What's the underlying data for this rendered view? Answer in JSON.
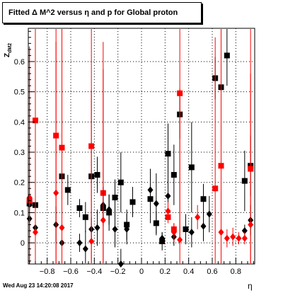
{
  "chart_data": {
    "type": "scatter",
    "title": "Fitted Δ M^2 versus η and p for Global proton",
    "xlabel": "η",
    "ylabel_main": "Z",
    "ylabel_sub": "dM2",
    "xlim": [
      -0.96,
      0.96
    ],
    "ylim": [
      -0.07,
      0.71
    ],
    "x_ticks": [
      -0.8,
      -0.6,
      -0.4,
      -0.2,
      0,
      0.2,
      0.4,
      0.6,
      0.8
    ],
    "x_tick_labels": [
      "−0.8",
      "−0.6",
      "−0.4",
      "−0.2",
      "0",
      "0.2",
      "0.4",
      "0.6",
      "0.8"
    ],
    "y_ticks": [
      0,
      0.1,
      0.2,
      0.3,
      0.4,
      0.5,
      0.6
    ],
    "y_tick_labels": [
      "0",
      "0.1",
      "0.2",
      "0.3",
      "0.4",
      "0.5",
      "0.6"
    ],
    "footer": "Wed Aug 23 14:20:08 2017",
    "series": [
      {
        "marker": "square",
        "color": "#000000",
        "points": [
          {
            "x": -0.95,
            "y": 0.13,
            "err": 0.02
          },
          {
            "x": -0.9,
            "y": 0.125,
            "err": 0.03
          },
          {
            "x": -0.675,
            "y": 0.22,
            "err": 0.08
          },
          {
            "x": -0.625,
            "y": 0.175,
            "err": 0.05
          },
          {
            "x": -0.525,
            "y": 0.115,
            "err": 0.03
          },
          {
            "x": -0.475,
            "y": 0.085,
            "err": 0.05
          },
          {
            "x": -0.425,
            "y": 0.22,
            "err": 0.02
          },
          {
            "x": -0.375,
            "y": 0.225,
            "err": 0.06
          },
          {
            "x": -0.325,
            "y": 0.115,
            "err": 0.06
          },
          {
            "x": -0.275,
            "y": 0.1,
            "err": 0.06
          },
          {
            "x": -0.225,
            "y": 0.15,
            "err": 0.06
          },
          {
            "x": -0.175,
            "y": 0.2,
            "err": 0.1
          },
          {
            "x": -0.125,
            "y": 0.06,
            "err": 0.05
          },
          {
            "x": -0.075,
            "y": 0.135,
            "err": 0.05
          },
          {
            "x": 0.075,
            "y": 0.145,
            "err": 0.08
          },
          {
            "x": 0.125,
            "y": 0.065,
            "err": 0.04
          },
          {
            "x": 0.175,
            "y": 0.005,
            "err": 0.03
          },
          {
            "x": 0.225,
            "y": 0.295,
            "err": 0.1
          },
          {
            "x": 0.275,
            "y": 0.225,
            "err": 0.1
          },
          {
            "x": 0.325,
            "y": 0.425,
            "err": 0.08
          },
          {
            "x": 0.375,
            "y": 0.045,
            "err": 0.05
          },
          {
            "x": 0.425,
            "y": 0.25,
            "err": 0.15
          },
          {
            "x": 0.525,
            "y": 0.145,
            "err": 0.05
          },
          {
            "x": 0.625,
            "y": 0.545,
            "err": 0.07
          },
          {
            "x": 0.675,
            "y": 0.515,
            "err": 0.06
          },
          {
            "x": 0.725,
            "y": 0.62,
            "err": 0.1
          },
          {
            "x": 0.875,
            "y": 0.205,
            "err": 0.1
          },
          {
            "x": 0.925,
            "y": 0.255,
            "err": 0.1
          }
        ]
      },
      {
        "marker": "square",
        "color": "#ff0000",
        "points": [
          {
            "x": -0.95,
            "y": 0.14,
            "err": 0.5
          },
          {
            "x": -0.9,
            "y": 0.405,
            "err": 0.5
          },
          {
            "x": -0.725,
            "y": 0.355,
            "err": 0.5
          },
          {
            "x": -0.675,
            "y": 0.315,
            "err": 0.5
          },
          {
            "x": -0.425,
            "y": 0.32,
            "err": 0.5
          },
          {
            "x": -0.325,
            "y": 0.165,
            "err": 0.5
          },
          {
            "x": 0.225,
            "y": 0.085,
            "err": 0.02
          },
          {
            "x": 0.275,
            "y": 0.045,
            "err": 0.02
          },
          {
            "x": 0.325,
            "y": 0.495,
            "err": 0.5
          },
          {
            "x": 0.625,
            "y": 0.18,
            "err": 0.5
          },
          {
            "x": 0.675,
            "y": 0.255,
            "err": 0.5
          },
          {
            "x": 0.925,
            "y": 0.245,
            "err": 0.5
          }
        ]
      },
      {
        "marker": "diamond",
        "color": "#000000",
        "points": [
          {
            "x": -0.95,
            "y": 0.08,
            "err": 0.04
          },
          {
            "x": -0.9,
            "y": 0.05,
            "err": 0.06
          },
          {
            "x": -0.725,
            "y": 0.06,
            "err": 0.06
          },
          {
            "x": -0.675,
            "y": 0.0,
            "err": 0.05
          },
          {
            "x": -0.525,
            "y": 0.0,
            "err": 0.03
          },
          {
            "x": -0.475,
            "y": -0.02,
            "err": 0.06
          },
          {
            "x": -0.425,
            "y": 0.045,
            "err": 0.04
          },
          {
            "x": -0.375,
            "y": 0.05,
            "err": 0.06
          },
          {
            "x": -0.325,
            "y": 0.125,
            "err": 0.06
          },
          {
            "x": -0.275,
            "y": 0.11,
            "err": 0.05
          },
          {
            "x": -0.225,
            "y": 0.045,
            "err": 0.06
          },
          {
            "x": -0.175,
            "y": -0.07,
            "err": 0.05
          },
          {
            "x": -0.125,
            "y": 0.045,
            "err": 0.05
          },
          {
            "x": 0.075,
            "y": 0.175,
            "err": 0.07
          },
          {
            "x": 0.125,
            "y": 0.13,
            "err": 0.1
          },
          {
            "x": 0.175,
            "y": 0.015,
            "err": 0.02
          },
          {
            "x": 0.225,
            "y": 0.155,
            "err": 0.06
          },
          {
            "x": 0.275,
            "y": 0.02,
            "err": 0.03
          },
          {
            "x": 0.425,
            "y": 0.035,
            "err": 0.05
          },
          {
            "x": 0.525,
            "y": 0.055,
            "err": 0.05
          },
          {
            "x": 0.575,
            "y": 0.095,
            "err": 0.06
          },
          {
            "x": 0.875,
            "y": 0.04,
            "err": 0.02
          },
          {
            "x": 0.925,
            "y": 0.075,
            "err": 0.05
          }
        ]
      },
      {
        "marker": "diamond",
        "color": "#ff0000",
        "points": [
          {
            "x": -0.95,
            "y": 0.15,
            "err": 0.5
          },
          {
            "x": -0.9,
            "y": 0.035,
            "err": 0.5
          },
          {
            "x": -0.725,
            "y": 0.165,
            "err": 0.5
          },
          {
            "x": -0.675,
            "y": 0.05,
            "err": 0.5
          },
          {
            "x": -0.425,
            "y": 0.005,
            "err": 0.5
          },
          {
            "x": -0.325,
            "y": 0.075,
            "err": 0.5
          },
          {
            "x": 0.225,
            "y": 0.105,
            "err": 0.03
          },
          {
            "x": 0.275,
            "y": 0.035,
            "err": 0.03
          },
          {
            "x": 0.325,
            "y": 0.01,
            "err": 0.5
          },
          {
            "x": 0.475,
            "y": 0.085,
            "err": 0.04
          },
          {
            "x": 0.675,
            "y": 0.035,
            "err": 0.5
          },
          {
            "x": 0.725,
            "y": 0.015,
            "err": 0.03
          },
          {
            "x": 0.775,
            "y": 0.02,
            "err": 0.03
          },
          {
            "x": 0.825,
            "y": 0.015,
            "err": 0.02
          },
          {
            "x": 0.875,
            "y": 0.015,
            "err": 0.02
          },
          {
            "x": 0.925,
            "y": 0.06,
            "err": 0.5
          }
        ]
      }
    ]
  }
}
